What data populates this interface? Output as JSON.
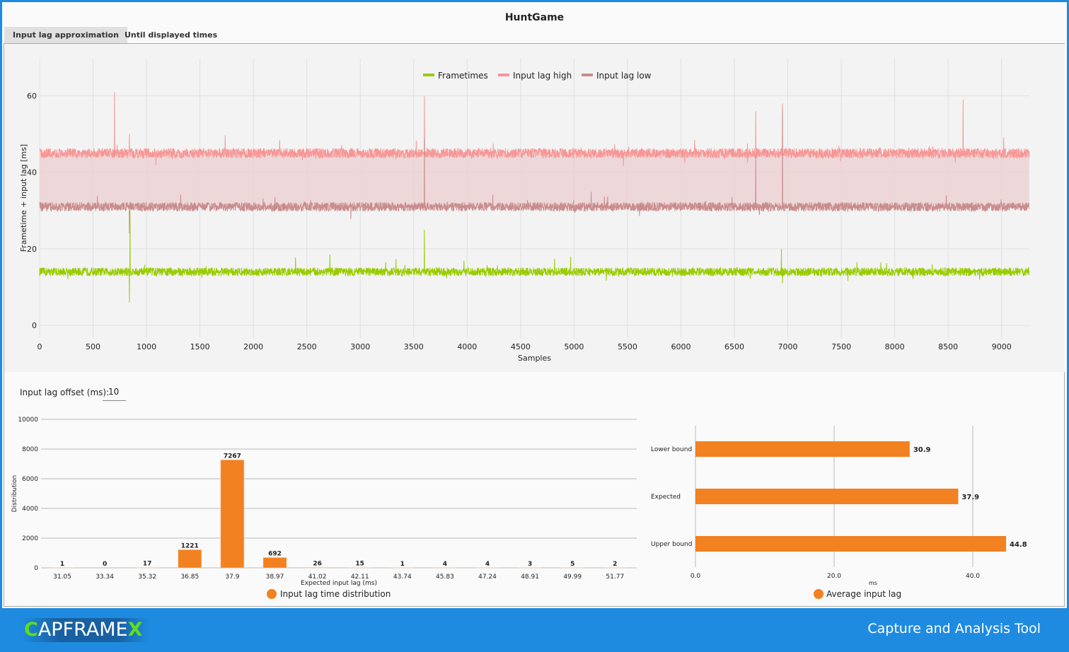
{
  "window": {
    "title": "HuntGame"
  },
  "tabs": [
    {
      "label": "Input lag approximation",
      "active": true
    },
    {
      "label": "Until displayed times",
      "active": false
    }
  ],
  "offset": {
    "label": "Input lag offset (ms):",
    "value": "10"
  },
  "footer": {
    "logo": "CAPFRAMEX",
    "tagline": "Capture and Analysis Tool"
  },
  "colors": {
    "frametimes": "#99cc00",
    "lag_high": "#f79696",
    "lag_low": "#c98c8c",
    "band": "#eccfd1",
    "bar": "#f28121",
    "accent": "#1e8be0"
  },
  "chart_data": [
    {
      "type": "line",
      "xlabel": "Samples",
      "ylabel": "Frametime + input lag [ms]",
      "xlim": [
        0,
        9260
      ],
      "ylim": [
        -3.3,
        69.7
      ],
      "xticks": [
        "0",
        "500",
        "1000",
        "1500",
        "2000",
        "2500",
        "3000",
        "3500",
        "4000",
        "4500",
        "5000",
        "5500",
        "6000",
        "6500",
        "7000",
        "7500",
        "8000",
        "8500",
        "9000"
      ],
      "yticks": [
        "0",
        "20",
        "40",
        "60"
      ],
      "grid": true,
      "legend": "top-center",
      "series": [
        {
          "name": "Frametimes",
          "approx_level": 14,
          "spikes": [
            [
              840,
              6
            ],
            [
              845,
              30
            ],
            [
              3600,
              25
            ],
            [
              6940,
              20
            ],
            [
              6950,
              11
            ]
          ]
        },
        {
          "name": "Input lag high",
          "approx_level": 45,
          "spikes": [
            [
              700,
              61
            ],
            [
              840,
              50
            ],
            [
              3600,
              60
            ],
            [
              6700,
              56
            ],
            [
              6950,
              58
            ],
            [
              8640,
              59
            ]
          ]
        },
        {
          "name": "Input lag low",
          "approx_level": 31,
          "spikes": [
            [
              840,
              24
            ],
            [
              3600,
              49
            ],
            [
              6700,
              45
            ],
            [
              6950,
              57
            ]
          ]
        }
      ]
    },
    {
      "type": "bar",
      "xlabel": "Expected input lag (ms)",
      "ylabel": "Distribution",
      "ylim": [
        0,
        10000
      ],
      "yticks": [
        "0",
        "2000",
        "4000",
        "6000",
        "8000",
        "10000"
      ],
      "legend": "bottom",
      "series_name": "Input lag time distribution",
      "categories": [
        "31.05",
        "33.34",
        "35.32",
        "36.85",
        "37.9",
        "38.97",
        "41.02",
        "42.11",
        "43.74",
        "45.83",
        "47.24",
        "48.91",
        "49.99",
        "51.77"
      ],
      "values": [
        1,
        0,
        17,
        1221,
        7267,
        692,
        26,
        15,
        1,
        4,
        4,
        3,
        5,
        2
      ]
    },
    {
      "type": "bar",
      "orientation": "horizontal",
      "xlabel": "ms",
      "xlim": [
        0,
        50
      ],
      "xticks": [
        "0.0",
        "20.0",
        "40.0"
      ],
      "legend": "bottom",
      "series_name": "Average input lag",
      "categories": [
        "Lower bound",
        "Expected",
        "Upper bound"
      ],
      "values": [
        30.9,
        37.9,
        44.8
      ],
      "labels": [
        "30.9",
        "37.9",
        "44.8"
      ]
    }
  ]
}
